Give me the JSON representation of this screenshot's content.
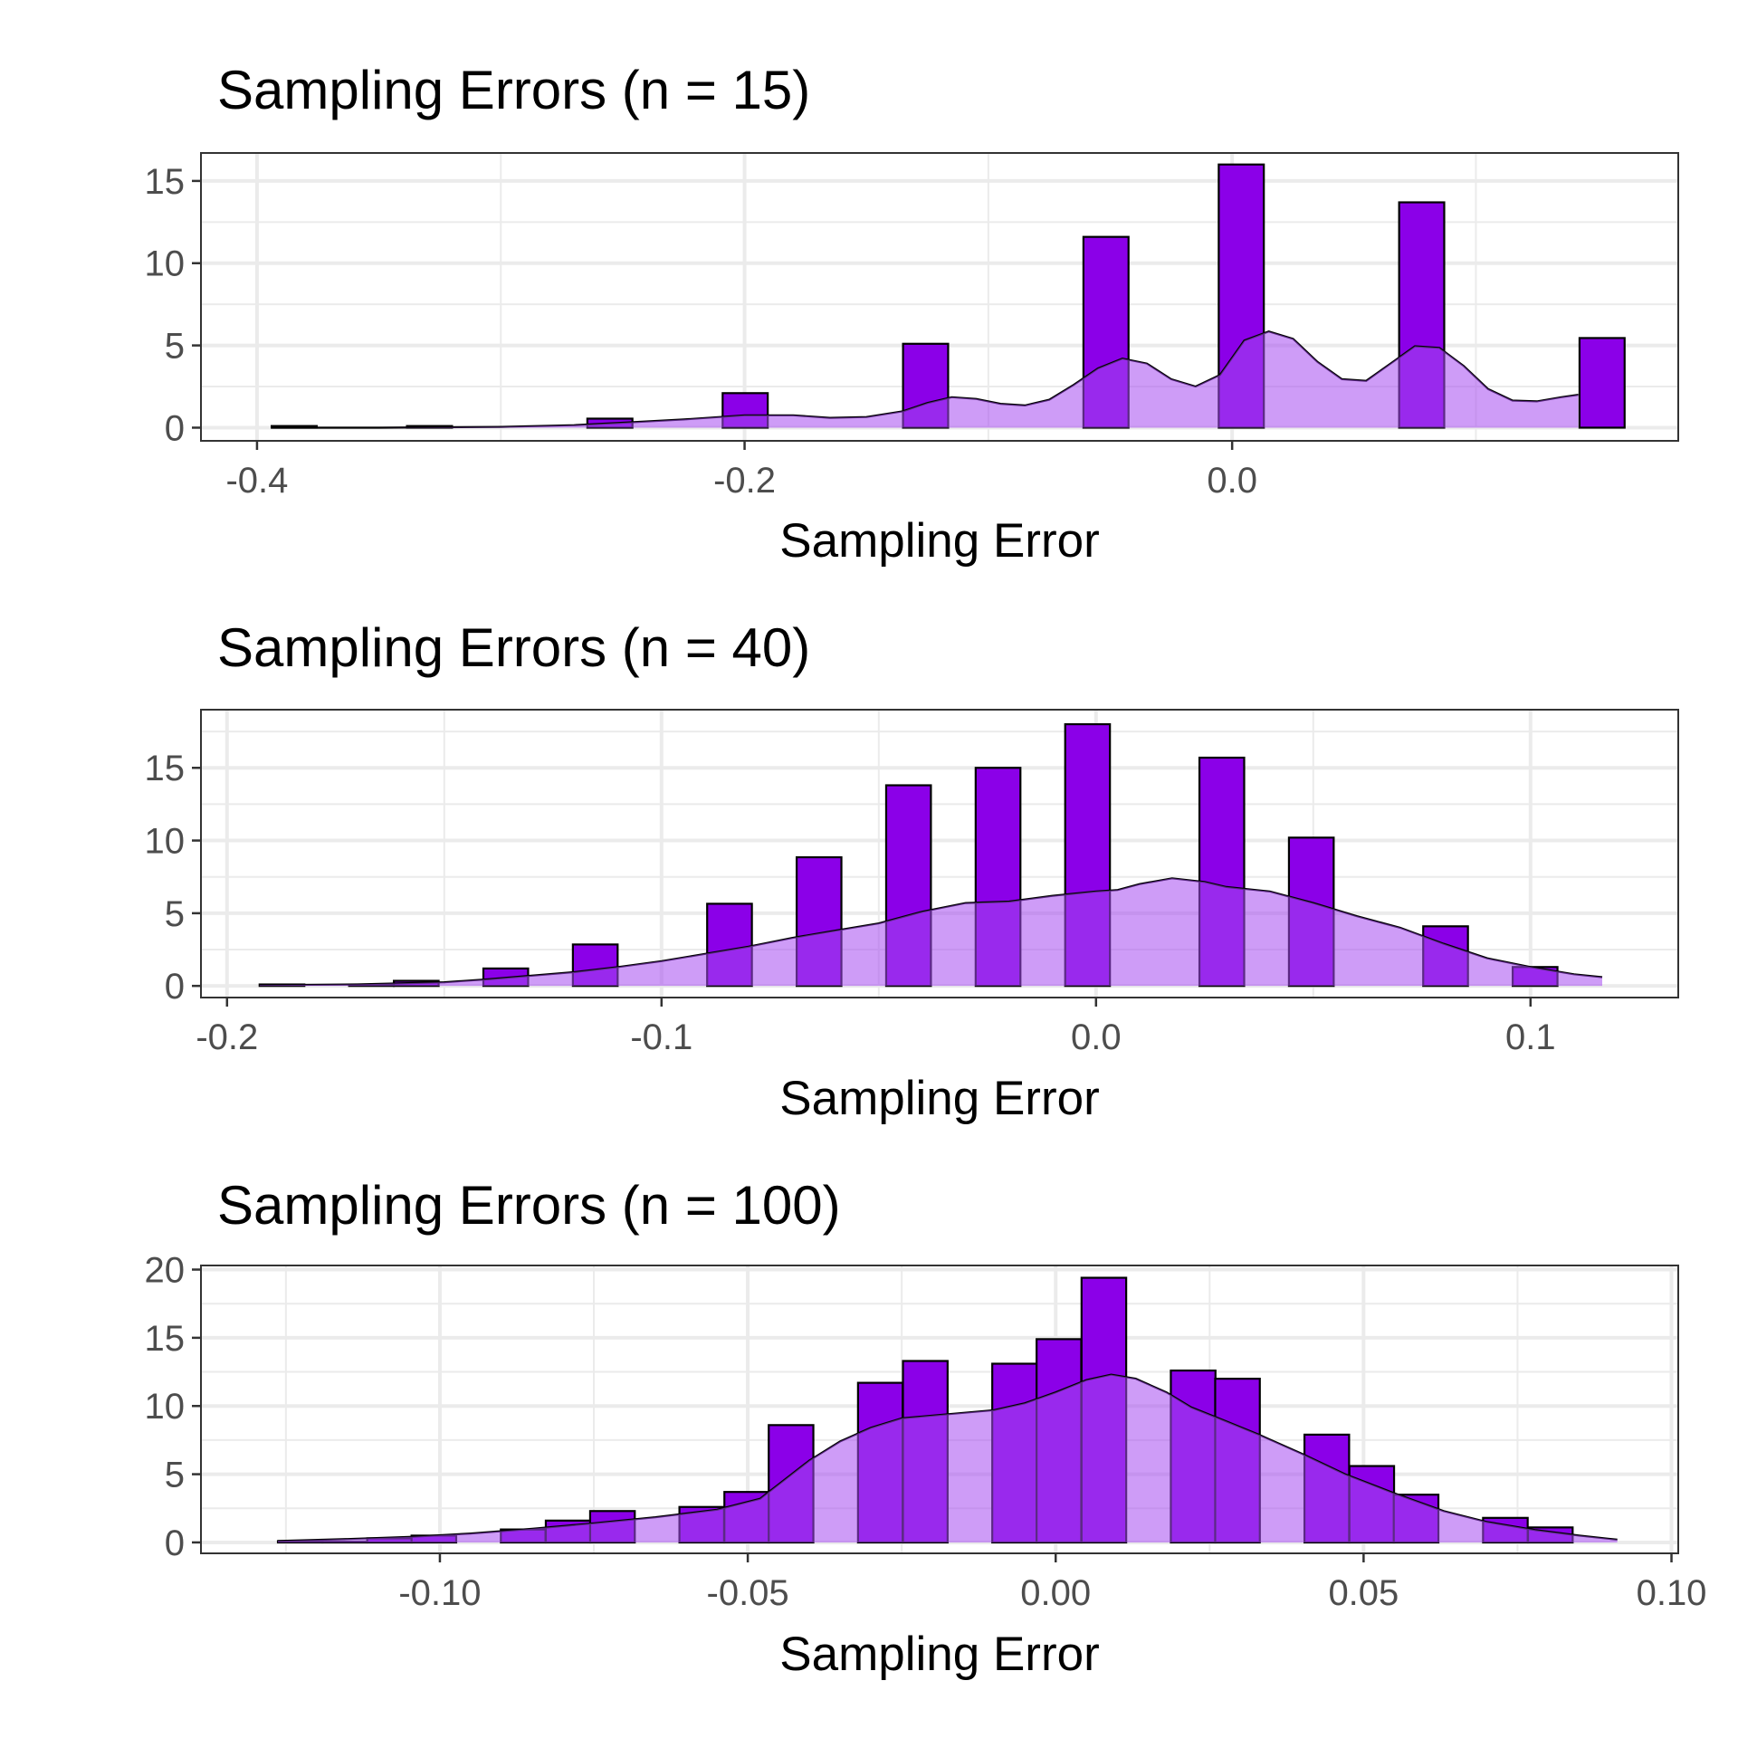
{
  "colors": {
    "bar_fill": "#8b00e8",
    "bar_stroke": "#000000",
    "density_fill": "#a64af0",
    "density_stroke": "#000000"
  },
  "chart_data": [
    {
      "type": "bar",
      "title": "Sampling Errors (n = 15)",
      "xlabel": "Sampling Error",
      "ylabel": "",
      "grid": true,
      "xlim": [
        -0.423,
        0.183
      ],
      "ylim": [
        -0.8,
        16.7
      ],
      "xticks": [
        -0.4,
        -0.2,
        0.0
      ],
      "xtick_labels": [
        "-0.4",
        "-0.2",
        "0.0"
      ],
      "yticks": [
        0,
        5,
        10,
        15
      ],
      "ytick_labels": [
        "0",
        "5",
        "10",
        "15"
      ],
      "bin_width": 0.0185,
      "bins": [
        {
          "x0": -0.394,
          "value": 0.1
        },
        {
          "x0": -0.3755,
          "value": 0.0
        },
        {
          "x0": -0.357,
          "value": 0.0
        },
        {
          "x0": -0.3385,
          "value": 0.1
        },
        {
          "x0": -0.32,
          "value": 0.0
        },
        {
          "x0": -0.3015,
          "value": 0.0
        },
        {
          "x0": -0.283,
          "value": 0.0
        },
        {
          "x0": -0.2645,
          "value": 0.55
        },
        {
          "x0": -0.246,
          "value": 0.0
        },
        {
          "x0": -0.2275,
          "value": 0.0
        },
        {
          "x0": -0.209,
          "value": 2.1
        },
        {
          "x0": -0.1905,
          "value": 0.0
        },
        {
          "x0": -0.172,
          "value": 0.0
        },
        {
          "x0": -0.1535,
          "value": 0.0
        },
        {
          "x0": -0.135,
          "value": 5.1
        },
        {
          "x0": -0.1165,
          "value": 0.0
        },
        {
          "x0": -0.098,
          "value": 0.0
        },
        {
          "x0": -0.0795,
          "value": 0.0
        },
        {
          "x0": -0.061,
          "value": 11.6
        },
        {
          "x0": -0.0425,
          "value": 0.0
        },
        {
          "x0": -0.024,
          "value": 0.0
        },
        {
          "x0": -0.0055,
          "value": 16.0
        },
        {
          "x0": 0.013,
          "value": 0.0
        },
        {
          "x0": 0.0315,
          "value": 0.0
        },
        {
          "x0": 0.05,
          "value": 0.0
        },
        {
          "x0": 0.0685,
          "value": 13.7
        },
        {
          "x0": 0.087,
          "value": 0.0
        },
        {
          "x0": 0.1055,
          "value": 0.0
        },
        {
          "x0": 0.124,
          "value": 0.0
        },
        {
          "x0": 0.1425,
          "value": 5.45
        }
      ],
      "density": [
        [
          -0.394,
          0.0
        ],
        [
          -0.35,
          0.0
        ],
        [
          -0.3,
          0.05
        ],
        [
          -0.27,
          0.15
        ],
        [
          -0.25,
          0.3
        ],
        [
          -0.225,
          0.5
        ],
        [
          -0.2,
          0.75
        ],
        [
          -0.18,
          0.75
        ],
        [
          -0.165,
          0.6
        ],
        [
          -0.15,
          0.65
        ],
        [
          -0.135,
          1.0
        ],
        [
          -0.125,
          1.5
        ],
        [
          -0.115,
          1.85
        ],
        [
          -0.105,
          1.75
        ],
        [
          -0.095,
          1.45
        ],
        [
          -0.085,
          1.35
        ],
        [
          -0.075,
          1.7
        ],
        [
          -0.065,
          2.6
        ],
        [
          -0.055,
          3.6
        ],
        [
          -0.045,
          4.2
        ],
        [
          -0.035,
          3.9
        ],
        [
          -0.025,
          2.95
        ],
        [
          -0.015,
          2.5
        ],
        [
          -0.005,
          3.2
        ],
        [
          0.005,
          5.3
        ],
        [
          0.015,
          5.85
        ],
        [
          0.025,
          5.4
        ],
        [
          0.035,
          4.0
        ],
        [
          0.045,
          2.95
        ],
        [
          0.055,
          2.85
        ],
        [
          0.065,
          3.9
        ],
        [
          0.075,
          4.95
        ],
        [
          0.085,
          4.85
        ],
        [
          0.095,
          3.75
        ],
        [
          0.105,
          2.35
        ],
        [
          0.115,
          1.65
        ],
        [
          0.125,
          1.6
        ],
        [
          0.135,
          1.85
        ],
        [
          0.142,
          2.0
        ]
      ]
    },
    {
      "type": "bar",
      "title": "Sampling Errors (n = 40)",
      "xlabel": "Sampling Error",
      "ylabel": "",
      "grid": true,
      "xlim": [
        -0.206,
        0.134
      ],
      "ylim": [
        -0.8,
        19.0
      ],
      "xticks": [
        -0.2,
        -0.1,
        0.0,
        0.1
      ],
      "xtick_labels": [
        "-0.2",
        "-0.1",
        "0.0",
        "0.1"
      ],
      "yticks": [
        0,
        5,
        10,
        15
      ],
      "ytick_labels": [
        "0",
        "5",
        "10",
        "15"
      ],
      "bin_width": 0.0103,
      "bins": [
        {
          "x0": -0.1925,
          "value": 0.1
        },
        {
          "x0": -0.1822,
          "value": 0.0
        },
        {
          "x0": -0.1719,
          "value": 0.05
        },
        {
          "x0": -0.1616,
          "value": 0.35
        },
        {
          "x0": -0.1513,
          "value": 0.0
        },
        {
          "x0": -0.141,
          "value": 1.2
        },
        {
          "x0": -0.1307,
          "value": 0.0
        },
        {
          "x0": -0.1204,
          "value": 2.85
        },
        {
          "x0": -0.1101,
          "value": 0.0
        },
        {
          "x0": -0.0998,
          "value": 0.0
        },
        {
          "x0": -0.0895,
          "value": 5.65
        },
        {
          "x0": -0.0792,
          "value": 0.0
        },
        {
          "x0": -0.0689,
          "value": 8.85
        },
        {
          "x0": -0.0586,
          "value": 0.0
        },
        {
          "x0": -0.0483,
          "value": 13.8
        },
        {
          "x0": -0.038,
          "value": 0.0
        },
        {
          "x0": -0.0277,
          "value": 15.0
        },
        {
          "x0": -0.0174,
          "value": 0.0
        },
        {
          "x0": -0.0071,
          "value": 18.0
        },
        {
          "x0": 0.0032,
          "value": 0.0
        },
        {
          "x0": 0.0135,
          "value": 0.0
        },
        {
          "x0": 0.0238,
          "value": 15.7
        },
        {
          "x0": 0.0341,
          "value": 0.0
        },
        {
          "x0": 0.0444,
          "value": 10.2
        },
        {
          "x0": 0.0547,
          "value": 0.0
        },
        {
          "x0": 0.065,
          "value": 0.0
        },
        {
          "x0": 0.0753,
          "value": 4.1
        },
        {
          "x0": 0.0856,
          "value": 0.0
        },
        {
          "x0": 0.0959,
          "value": 1.3
        }
      ],
      "density": [
        [
          -0.1925,
          0.05
        ],
        [
          -0.17,
          0.1
        ],
        [
          -0.15,
          0.25
        ],
        [
          -0.14,
          0.45
        ],
        [
          -0.13,
          0.7
        ],
        [
          -0.12,
          0.95
        ],
        [
          -0.11,
          1.3
        ],
        [
          -0.1,
          1.7
        ],
        [
          -0.09,
          2.2
        ],
        [
          -0.08,
          2.7
        ],
        [
          -0.07,
          3.3
        ],
        [
          -0.06,
          3.8
        ],
        [
          -0.05,
          4.3
        ],
        [
          -0.04,
          5.1
        ],
        [
          -0.03,
          5.7
        ],
        [
          -0.02,
          5.8
        ],
        [
          -0.01,
          6.2
        ],
        [
          0.0,
          6.5
        ],
        [
          0.005,
          6.6
        ],
        [
          0.01,
          7.0
        ],
        [
          0.0175,
          7.4
        ],
        [
          0.025,
          7.15
        ],
        [
          0.03,
          6.8
        ],
        [
          0.04,
          6.5
        ],
        [
          0.05,
          5.7
        ],
        [
          0.06,
          4.8
        ],
        [
          0.07,
          4.0
        ],
        [
          0.08,
          2.9
        ],
        [
          0.09,
          1.9
        ],
        [
          0.1,
          1.3
        ],
        [
          0.11,
          0.8
        ],
        [
          0.1165,
          0.6
        ]
      ]
    },
    {
      "type": "bar",
      "title": "Sampling Errors (n = 100)",
      "xlabel": "Sampling Error",
      "ylabel": "",
      "grid": true,
      "xlim": [
        -0.1388,
        0.1011
      ],
      "ylim": [
        -0.8,
        20.3
      ],
      "xticks": [
        -0.1,
        -0.05,
        0.0,
        0.05,
        0.1
      ],
      "xtick_labels": [
        "-0.10",
        "-0.05",
        "0.00",
        "0.05",
        "0.10"
      ],
      "yticks": [
        0,
        5,
        10,
        15,
        20
      ],
      "ytick_labels": [
        "0",
        "5",
        "10",
        "15",
        "20"
      ],
      "bin_width": 0.00725,
      "bins": [
        {
          "x0": -0.1263,
          "value": 0.1
        },
        {
          "x0": -0.1191,
          "value": 0.05
        },
        {
          "x0": -0.1118,
          "value": 0.3
        },
        {
          "x0": -0.1046,
          "value": 0.5
        },
        {
          "x0": -0.0973,
          "value": 0.0
        },
        {
          "x0": -0.0901,
          "value": 0.95
        },
        {
          "x0": -0.0828,
          "value": 1.6
        },
        {
          "x0": -0.0756,
          "value": 2.3
        },
        {
          "x0": -0.0683,
          "value": 0.0
        },
        {
          "x0": -0.0611,
          "value": 2.6
        },
        {
          "x0": -0.0538,
          "value": 3.7
        },
        {
          "x0": -0.0466,
          "value": 8.6
        },
        {
          "x0": -0.0393,
          "value": 0.0
        },
        {
          "x0": -0.0321,
          "value": 11.7
        },
        {
          "x0": -0.0248,
          "value": 13.3
        },
        {
          "x0": -0.0176,
          "value": 0.0
        },
        {
          "x0": -0.0103,
          "value": 13.1
        },
        {
          "x0": -0.0031,
          "value": 14.9
        },
        {
          "x0": 0.0042,
          "value": 19.4
        },
        {
          "x0": 0.0114,
          "value": 0.0
        },
        {
          "x0": 0.0187,
          "value": 12.6
        },
        {
          "x0": 0.0259,
          "value": 12.0
        },
        {
          "x0": 0.0332,
          "value": 0.0
        },
        {
          "x0": 0.0404,
          "value": 7.9
        },
        {
          "x0": 0.0477,
          "value": 5.6
        },
        {
          "x0": 0.0549,
          "value": 3.5
        },
        {
          "x0": 0.0622,
          "value": 0.0
        },
        {
          "x0": 0.0694,
          "value": 1.8
        },
        {
          "x0": 0.0767,
          "value": 1.1
        }
      ],
      "density": [
        [
          -0.1263,
          0.1
        ],
        [
          -0.115,
          0.25
        ],
        [
          -0.105,
          0.4
        ],
        [
          -0.095,
          0.65
        ],
        [
          -0.085,
          1.0
        ],
        [
          -0.075,
          1.4
        ],
        [
          -0.065,
          1.85
        ],
        [
          -0.055,
          2.4
        ],
        [
          -0.048,
          3.2
        ],
        [
          -0.044,
          4.6
        ],
        [
          -0.04,
          6.0
        ],
        [
          -0.035,
          7.4
        ],
        [
          -0.03,
          8.4
        ],
        [
          -0.025,
          9.1
        ],
        [
          -0.02,
          9.3
        ],
        [
          -0.015,
          9.5
        ],
        [
          -0.01,
          9.7
        ],
        [
          -0.005,
          10.2
        ],
        [
          0.0,
          11.0
        ],
        [
          0.005,
          11.9
        ],
        [
          0.009,
          12.3
        ],
        [
          0.013,
          12.0
        ],
        [
          0.018,
          11.0
        ],
        [
          0.022,
          9.9
        ],
        [
          0.027,
          9.0
        ],
        [
          0.033,
          7.9
        ],
        [
          0.04,
          6.5
        ],
        [
          0.047,
          5.0
        ],
        [
          0.055,
          3.6
        ],
        [
          0.063,
          2.3
        ],
        [
          0.07,
          1.5
        ],
        [
          0.078,
          0.9
        ],
        [
          0.085,
          0.5
        ],
        [
          0.0912,
          0.2
        ]
      ]
    }
  ]
}
